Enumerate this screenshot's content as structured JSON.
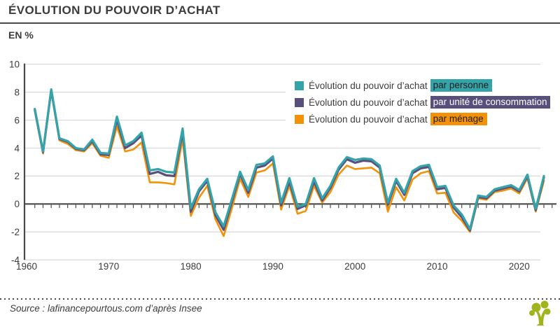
{
  "header": {
    "title": "ÉVOLUTION DU POUVOIR D’ACHAT",
    "unit_label": "EN %"
  },
  "footer": {
    "source": "Source : lafinancepourtous.com d’après Insee"
  },
  "colors": {
    "per_person": "#35a4aa",
    "per_consumption_unit": "#584f7d",
    "per_household": "#f39208",
    "axis": "#4a4a49",
    "grid": "#d8d8d8",
    "text": "#3c3c3b",
    "logo_green": "#a0b41c"
  },
  "legend": {
    "items": [
      {
        "prefix": "Évolution du pouvoir d’achat",
        "highlight": "par personne",
        "color": "#35a4aa",
        "highlight_text_color": "#1d1d1b"
      },
      {
        "prefix": "Évolution du pouvoir d’achat",
        "highlight": "par unité de consommation",
        "color": "#584f7d",
        "highlight_text_color": "#ffffff"
      },
      {
        "prefix": "Évolution du pouvoir d’achat",
        "highlight": "par ménage",
        "color": "#f39208",
        "highlight_text_color": "#1d1d1b"
      }
    ]
  },
  "chart_data": {
    "type": "line",
    "title": "ÉVOLUTION DU POUVOIR D’ACHAT",
    "ylabel": "EN %",
    "xlim": [
      1960,
      2025
    ],
    "ylim": [
      -4,
      10
    ],
    "y_ticks": [
      10,
      8,
      6,
      4,
      2,
      0,
      -2,
      -4
    ],
    "x_tick_labels": [
      1960,
      1970,
      1980,
      1990,
      2000,
      2010,
      2020
    ],
    "grid": "horizontal",
    "legend_position": "top-right",
    "x": [
      1961,
      1962,
      1963,
      1964,
      1965,
      1966,
      1967,
      1968,
      1969,
      1970,
      1971,
      1972,
      1973,
      1974,
      1975,
      1976,
      1977,
      1978,
      1979,
      1980,
      1981,
      1982,
      1983,
      1984,
      1985,
      1986,
      1987,
      1988,
      1989,
      1990,
      1991,
      1992,
      1993,
      1994,
      1995,
      1996,
      1997,
      1998,
      1999,
      2000,
      2001,
      2002,
      2003,
      2004,
      2005,
      2006,
      2007,
      2008,
      2009,
      2010,
      2011,
      2012,
      2013,
      2014,
      2015,
      2016,
      2017,
      2018,
      2019,
      2020,
      2021,
      2022,
      2023
    ],
    "series": [
      {
        "name": "Évolution du pouvoir d’achat par ménage",
        "color": "#f39208",
        "width": 2.6,
        "values": [
          6.65,
          3.6,
          8.05,
          4.55,
          4.3,
          3.85,
          3.75,
          4.35,
          3.45,
          3.3,
          5.55,
          3.75,
          3.9,
          4.4,
          1.55,
          1.55,
          1.5,
          1.4,
          4.65,
          -0.85,
          0.45,
          1.3,
          -1.1,
          -2.3,
          -0.3,
          1.8,
          0.5,
          2.25,
          2.4,
          2.9,
          -0.4,
          1.3,
          -0.7,
          -0.5,
          1.3,
          0.1,
          0.85,
          2.1,
          2.75,
          2.5,
          2.55,
          2.6,
          2.2,
          -0.55,
          1.2,
          0.25,
          1.75,
          2.2,
          2.35,
          0.75,
          0.8,
          -0.6,
          -1.2,
          -2.0,
          0.4,
          0.3,
          0.85,
          0.95,
          1.1,
          0.75,
          1.85,
          -0.55,
          1.65
        ]
      },
      {
        "name": "Évolution du pouvoir d’achat par unité de consommation",
        "color": "#584f7d",
        "width": 3.2,
        "values": [
          6.75,
          3.7,
          8.15,
          4.65,
          4.45,
          3.95,
          3.85,
          4.5,
          3.55,
          3.5,
          6.0,
          4.0,
          4.35,
          4.9,
          2.15,
          2.3,
          2.05,
          2.0,
          5.15,
          -0.55,
          0.9,
          1.65,
          -0.8,
          -1.85,
          0.15,
          2.15,
          0.8,
          2.6,
          2.75,
          3.25,
          -0.1,
          1.6,
          -0.35,
          -0.1,
          1.6,
          0.25,
          1.15,
          2.45,
          3.2,
          2.95,
          3.1,
          3.05,
          2.6,
          -0.05,
          1.65,
          0.65,
          2.2,
          2.55,
          2.65,
          1.05,
          1.15,
          -0.25,
          -0.95,
          -1.9,
          0.5,
          0.4,
          0.95,
          1.1,
          1.25,
          0.9,
          2.0,
          -0.45,
          1.9
        ]
      },
      {
        "name": "Évolution du pouvoir d’achat par personne",
        "color": "#35a4aa",
        "width": 3.2,
        "values": [
          6.8,
          3.75,
          8.2,
          4.7,
          4.5,
          4.0,
          3.9,
          4.6,
          3.65,
          3.6,
          6.25,
          4.2,
          4.5,
          5.1,
          2.4,
          2.5,
          2.3,
          2.25,
          5.4,
          -0.3,
          1.05,
          1.8,
          -0.6,
          -1.6,
          0.35,
          2.3,
          1.0,
          2.8,
          2.9,
          3.4,
          0.1,
          1.85,
          -0.2,
          0.0,
          1.85,
          0.4,
          1.3,
          2.6,
          3.35,
          3.15,
          3.25,
          3.2,
          2.75,
          0.1,
          1.8,
          0.8,
          2.35,
          2.7,
          2.8,
          1.2,
          1.3,
          -0.1,
          -0.75,
          -1.8,
          0.6,
          0.5,
          1.05,
          1.2,
          1.35,
          1.0,
          2.1,
          -0.35,
          2.0
        ]
      }
    ]
  }
}
